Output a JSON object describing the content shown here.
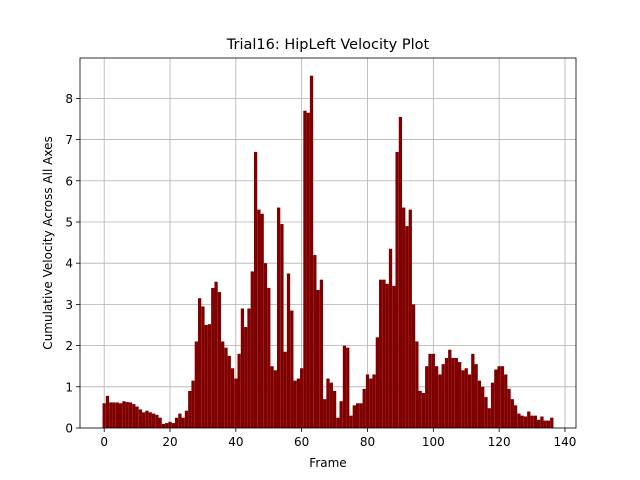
{
  "chart_data": {
    "type": "bar",
    "title": "Trial16: HipLeft Velocity Plot",
    "xlabel": "Frame",
    "ylabel": "Cumulative Velocity Across All Axes",
    "color": "#800000",
    "grid": true,
    "x": [
      0,
      1,
      2,
      3,
      4,
      5,
      6,
      7,
      8,
      9,
      10,
      11,
      12,
      13,
      14,
      15,
      16,
      17,
      18,
      19,
      20,
      21,
      22,
      23,
      24,
      25,
      26,
      27,
      28,
      29,
      30,
      31,
      32,
      33,
      34,
      35,
      36,
      37,
      38,
      39,
      40,
      41,
      42,
      43,
      44,
      45,
      46,
      47,
      48,
      49,
      50,
      51,
      52,
      53,
      54,
      55,
      56,
      57,
      58,
      59,
      60,
      61,
      62,
      63,
      64,
      65,
      66,
      67,
      68,
      69,
      70,
      71,
      72,
      73,
      74,
      75,
      76,
      77,
      78,
      79,
      80,
      81,
      82,
      83,
      84,
      85,
      86,
      87,
      88,
      89,
      90,
      91,
      92,
      93,
      94,
      95,
      96,
      97,
      98,
      99,
      100,
      101,
      102,
      103,
      104,
      105,
      106,
      107,
      108,
      109,
      110,
      111,
      112,
      113,
      114,
      115,
      116,
      117,
      118,
      119,
      120,
      121,
      122,
      123,
      124,
      125,
      126,
      127,
      128,
      129,
      130,
      131,
      132,
      133,
      134,
      135,
      136
    ],
    "values": [
      0.6,
      0.78,
      0.62,
      0.62,
      0.62,
      0.6,
      0.65,
      0.63,
      0.62,
      0.58,
      0.52,
      0.45,
      0.38,
      0.42,
      0.38,
      0.35,
      0.32,
      0.25,
      0.1,
      0.12,
      0.15,
      0.12,
      0.25,
      0.35,
      0.25,
      0.42,
      0.9,
      1.15,
      2.1,
      3.15,
      2.95,
      2.5,
      2.52,
      3.4,
      3.55,
      3.3,
      2.1,
      1.95,
      1.75,
      1.45,
      1.2,
      1.8,
      2.9,
      2.45,
      2.9,
      3.8,
      6.7,
      5.3,
      5.2,
      4.0,
      3.4,
      1.5,
      1.4,
      5.35,
      4.95,
      1.85,
      3.75,
      2.85,
      1.15,
      1.2,
      1.45,
      7.7,
      7.65,
      8.55,
      4.2,
      3.35,
      3.6,
      0.7,
      1.2,
      1.1,
      0.9,
      0.25,
      0.65,
      2.0,
      1.95,
      0.3,
      0.55,
      0.6,
      0.6,
      0.95,
      1.3,
      1.2,
      1.3,
      2.2,
      3.6,
      3.6,
      3.5,
      4.35,
      3.45,
      6.7,
      7.55,
      5.35,
      4.9,
      5.3,
      3.0,
      2.1,
      0.9,
      0.85,
      1.5,
      1.8,
      1.8,
      1.5,
      1.3,
      1.55,
      1.7,
      1.9,
      1.7,
      1.7,
      1.6,
      1.4,
      1.45,
      1.3,
      1.8,
      1.55,
      1.15,
      1.0,
      0.75,
      0.48,
      1.1,
      1.42,
      1.5,
      1.5,
      1.3,
      0.95,
      0.7,
      0.55,
      0.35,
      0.3,
      0.28,
      0.4,
      0.3,
      0.3,
      0.2,
      0.28,
      0.18,
      0.18,
      0.25
    ],
    "xlim": [
      -7.35,
      143.35
    ],
    "xticks": [
      0,
      20,
      40,
      60,
      80,
      100,
      120,
      140
    ],
    "ylim": [
      0,
      8.98
    ],
    "yticks": [
      0,
      1,
      2,
      3,
      4,
      5,
      6,
      7,
      8
    ]
  }
}
